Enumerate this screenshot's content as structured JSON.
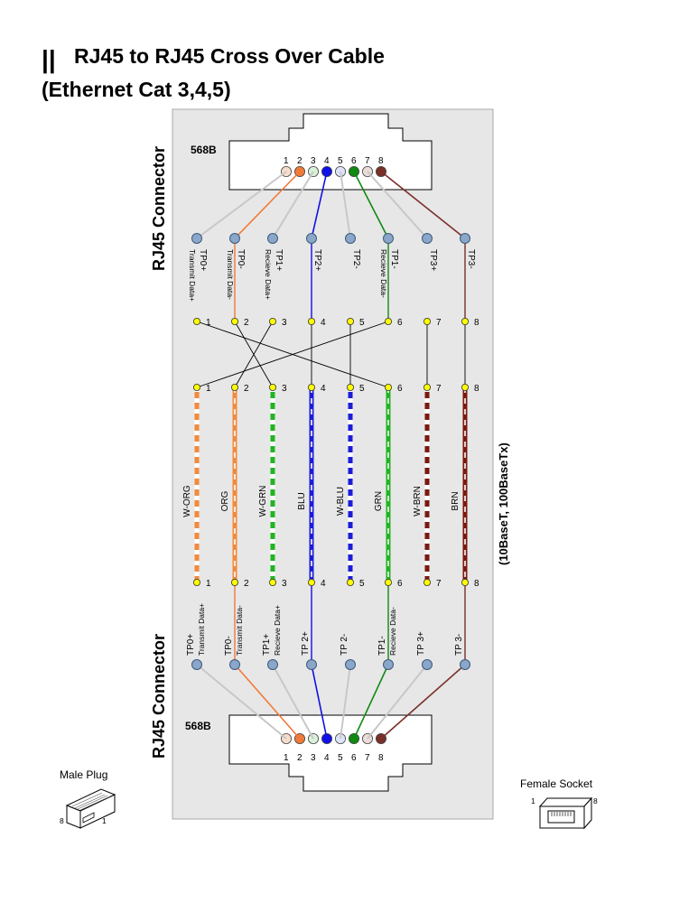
{
  "title": "RJ45 to RJ45 Cross Over Cable",
  "title_icon": "||",
  "subtitle": "(Ethernet Cat 3,4,5)",
  "side_label": "(10BaseT, 100BaseTx)",
  "connector_top": {
    "label": "RJ45 Connector",
    "standard": "568B"
  },
  "connector_bottom": {
    "label": "RJ45 Connector",
    "standard": "568B"
  },
  "pins": [
    "1",
    "2",
    "3",
    "4",
    "5",
    "6",
    "7",
    "8"
  ],
  "top_signals": [
    {
      "name": "TP0+",
      "desc": "Transmit Data+"
    },
    {
      "name": "TP0-",
      "desc": "Transmit Data-"
    },
    {
      "name": "TP1+",
      "desc": "Recieve Data+"
    },
    {
      "name": "TP2+",
      "desc": ""
    },
    {
      "name": "TP2-",
      "desc": ""
    },
    {
      "name": "TP1-",
      "desc": "Recieve Data-"
    },
    {
      "name": "TP3+",
      "desc": ""
    },
    {
      "name": "TP3-",
      "desc": ""
    }
  ],
  "bottom_signals": [
    {
      "name": "TP0+",
      "desc": "Transmit Data+"
    },
    {
      "name": "TP0-",
      "desc": "Transmit Data-"
    },
    {
      "name": "TP1+",
      "desc": "Recieve Data+"
    },
    {
      "name": "TP 2+",
      "desc": ""
    },
    {
      "name": "TP 2-",
      "desc": ""
    },
    {
      "name": "TP1-",
      "desc": "Recieve Data-"
    },
    {
      "name": "TP 3+",
      "desc": ""
    },
    {
      "name": "TP 3-",
      "desc": ""
    }
  ],
  "wires": [
    {
      "name": "W-ORG",
      "color": "#f28a3c",
      "striped": true
    },
    {
      "name": "ORG",
      "color": "#f28a3c",
      "striped": false
    },
    {
      "name": "W-GRN",
      "color": "#22b422",
      "striped": true
    },
    {
      "name": "BLU",
      "color": "#1c1cd8",
      "striped": false
    },
    {
      "name": "W-BLU",
      "color": "#1c1cd8",
      "striped": true
    },
    {
      "name": "GRN",
      "color": "#22b422",
      "striped": false
    },
    {
      "name": "W-BRN",
      "color": "#7a1a12",
      "striped": true
    },
    {
      "name": "BRN",
      "color": "#7a1a12",
      "striped": false
    }
  ],
  "pin_colors": [
    "#f5dccb",
    "#f07a38",
    "#d8f0d8",
    "#1010e8",
    "#dde4f8",
    "#108a10",
    "#eadcd8",
    "#7a3028"
  ],
  "top_wire_colors": [
    "#c8c8c8",
    "#f07a38",
    "#c8c8c8",
    "#1010e8",
    "#c8c8c8",
    "#108a10",
    "#c8c8c8",
    "#7a3028"
  ],
  "crossover_map": [
    6,
    3,
    2,
    4,
    5,
    1,
    7,
    8
  ],
  "male_plug": {
    "label": "Male Plug",
    "left_pin": "8",
    "right_pin": "1"
  },
  "female_socket": {
    "label": "Female Socket",
    "left_pin": "1",
    "right_pin": "8"
  }
}
